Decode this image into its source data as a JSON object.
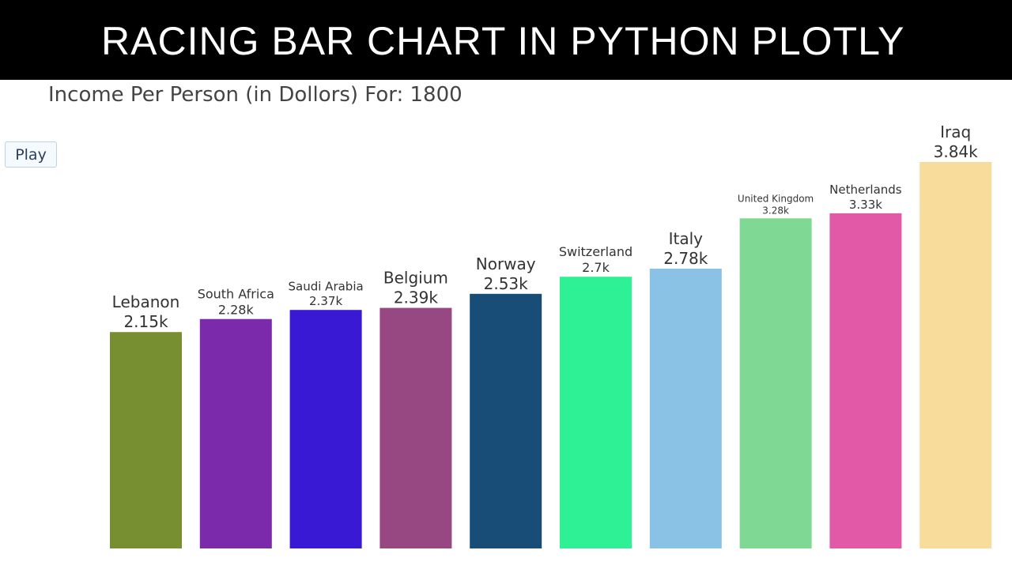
{
  "banner": {
    "title": "RACING BAR CHART IN PYTHON PLOTLY"
  },
  "controls": {
    "play_label": "Play"
  },
  "chart_data": {
    "type": "bar",
    "title": "Income Per Person (in Dollors) For: 1800",
    "xlabel": "",
    "ylabel": "",
    "ylim": [
      0,
      3840
    ],
    "grid": false,
    "categories": [
      "Lebanon",
      "South Africa",
      "Saudi Arabia",
      "Belgium",
      "Norway",
      "Switzerland",
      "Italy",
      "United Kingdom",
      "Netherlands",
      "Iraq"
    ],
    "values": [
      2150,
      2280,
      2370,
      2390,
      2530,
      2700,
      2780,
      3280,
      3330,
      3840
    ],
    "data_labels": [
      "2.15k",
      "2.28k",
      "2.37k",
      "2.39k",
      "2.53k",
      "2.7k",
      "2.78k",
      "3.28k",
      "3.33k",
      "3.84k"
    ],
    "colors": [
      "#778f30",
      "#7b2aab",
      "#3919d3",
      "#974782",
      "#184d78",
      "#2ef095",
      "#8ac2e5",
      "#7fd893",
      "#e25aa7",
      "#f7dc9c"
    ]
  }
}
